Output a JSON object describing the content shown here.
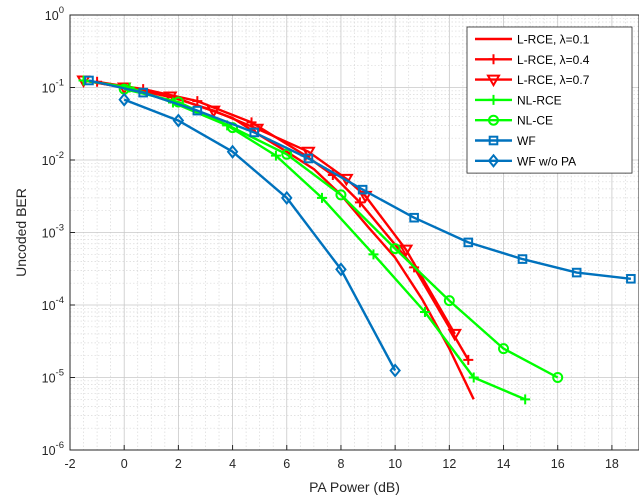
{
  "chart_data": {
    "type": "line",
    "xlabel": "PA Power (dB)",
    "ylabel": "Uncoded BER",
    "xlim": [
      -2,
      19
    ],
    "ylim": [
      1e-06,
      1
    ],
    "yscale": "log",
    "grid": true,
    "legend_position": "top-right",
    "x_ticks": [
      "-2",
      "0",
      "2",
      "4",
      "6",
      "8",
      "10",
      "12",
      "14",
      "16",
      "18"
    ],
    "y_ticks": [
      {
        "base": "10",
        "exp": "0"
      },
      {
        "base": "10",
        "exp": "-1"
      },
      {
        "base": "10",
        "exp": "-2"
      },
      {
        "base": "10",
        "exp": "-3"
      },
      {
        "base": "10",
        "exp": "-4"
      },
      {
        "base": "10",
        "exp": "-5"
      },
      {
        "base": "10",
        "exp": "-6"
      }
    ],
    "series": [
      {
        "name": "L-RCE, λ=0.1",
        "color": "#ff0000",
        "marker": "none",
        "points": [
          [
            -1.5,
            0.125
          ],
          [
            0,
            0.1
          ],
          [
            2,
            0.07
          ],
          [
            4,
            0.038
          ],
          [
            5,
            0.022
          ],
          [
            6,
            0.013
          ],
          [
            7,
            0.0075
          ],
          [
            8,
            0.0033
          ],
          [
            9,
            0.0012
          ],
          [
            10,
            0.00045
          ],
          [
            11,
            0.00012
          ],
          [
            12,
            2.5e-05
          ],
          [
            12.9,
            5e-06
          ]
        ]
      },
      {
        "name": "L-RCE, λ=0.4",
        "color": "#ff0000",
        "marker": "plus",
        "points": [
          [
            -1,
            0.12
          ],
          [
            0.7,
            0.095
          ],
          [
            2.7,
            0.065
          ],
          [
            4.7,
            0.033
          ],
          [
            6.7,
            0.0115
          ],
          [
            7.7,
            0.0062
          ],
          [
            8.7,
            0.0026
          ],
          [
            10.7,
            0.00033
          ],
          [
            12.7,
            1.75e-05
          ]
        ]
      },
      {
        "name": "L-RCE, λ=0.7",
        "color": "#ff0000",
        "marker": "triangle-down",
        "points": [
          [
            -1.5,
            0.125
          ],
          [
            0,
            0.1
          ],
          [
            1.7,
            0.075
          ],
          [
            3.3,
            0.048
          ],
          [
            4.9,
            0.027
          ],
          [
            6.8,
            0.013
          ],
          [
            8.2,
            0.0055
          ],
          [
            8.9,
            0.0032
          ],
          [
            10.4,
            0.00058
          ],
          [
            12.2,
            4e-05
          ]
        ]
      },
      {
        "name": "NL-RCE",
        "color": "#00ff00",
        "marker": "plus",
        "points": [
          [
            -1.5,
            0.125
          ],
          [
            0.2,
            0.1
          ],
          [
            1.8,
            0.062
          ],
          [
            3.8,
            0.03
          ],
          [
            5.6,
            0.0115
          ],
          [
            7.3,
            0.003
          ],
          [
            9.2,
            0.0005
          ],
          [
            11.1,
            8e-05
          ],
          [
            12.9,
            1e-05
          ],
          [
            14.8,
            5e-06
          ]
        ]
      },
      {
        "name": "NL-CE",
        "color": "#00ff00",
        "marker": "circle",
        "points": [
          [
            0,
            0.095
          ],
          [
            2,
            0.063
          ],
          [
            4,
            0.028
          ],
          [
            6,
            0.012
          ],
          [
            8,
            0.0033
          ],
          [
            10,
            0.0006
          ],
          [
            12,
            0.000115
          ],
          [
            14,
            2.5e-05
          ],
          [
            16,
            1e-05
          ]
        ]
      },
      {
        "name": "WF",
        "color": "#0072bd",
        "marker": "square",
        "points": [
          [
            -1.3,
            0.125
          ],
          [
            0.7,
            0.085
          ],
          [
            2.7,
            0.048
          ],
          [
            4.8,
            0.024
          ],
          [
            6.8,
            0.0105
          ],
          [
            8.8,
            0.0039
          ],
          [
            10.7,
            0.0016
          ],
          [
            12.7,
            0.00073
          ],
          [
            14.7,
            0.00043
          ],
          [
            16.7,
            0.00028
          ],
          [
            18.7,
            0.00023
          ]
        ]
      },
      {
        "name": "WF w/o PA",
        "color": "#0072bd",
        "marker": "diamond",
        "points": [
          [
            0,
            0.068
          ],
          [
            2,
            0.035
          ],
          [
            4,
            0.013
          ],
          [
            6,
            0.003
          ],
          [
            8,
            0.00031
          ],
          [
            10,
            1.25e-05
          ]
        ]
      }
    ]
  }
}
